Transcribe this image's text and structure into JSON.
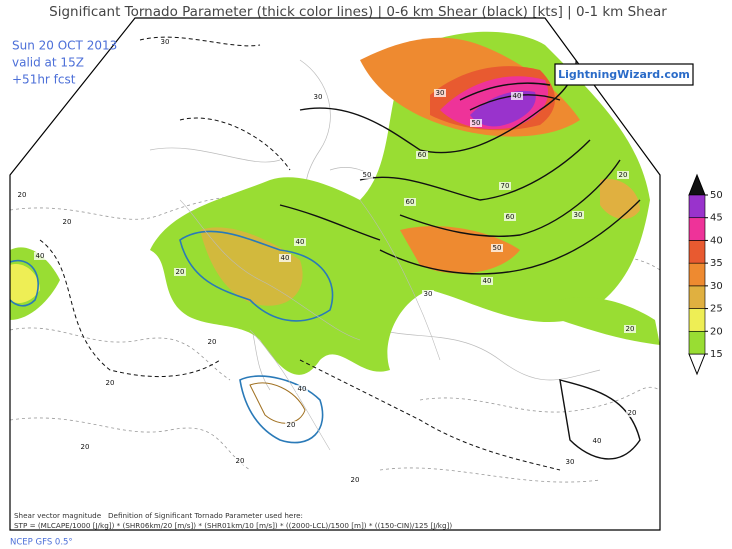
{
  "title": "Significant Tornado Parameter (thick color lines) | 0-6 km Shear (black) [kts] | 0-1 km Shear",
  "info": [
    "Sun 20 OCT 2013",
    "valid at 15Z",
    "+51hr fcst"
  ],
  "site": "LightningWizard.com",
  "footer": {
    "shear_note": "Shear vector magnitude",
    "definition": "Definition of Significant Tornado Parameter used here:",
    "formula": "STP = (MLCAPE/1000 [J/kg]) * (SHR06km/20 [m/s]) * (SHR01km/10 [m/s]) * ((2000-LCL)/1500 [m]) * ((150-CIN)/125 [J/kg])",
    "model": "NCEP GFS 0.5°"
  },
  "colorbar": {
    "ticks": [
      15,
      20,
      25,
      30,
      35,
      40,
      45,
      50
    ],
    "colors": [
      "#99dd33",
      "#eeee55",
      "#e0b040",
      "#ee8a30",
      "#e85a30",
      "#ee3399",
      "#9933cc"
    ]
  },
  "contour_labels": [
    30,
    30,
    30,
    40,
    50,
    60,
    50,
    60,
    70,
    60,
    50,
    40,
    30,
    40,
    20,
    20,
    20,
    40,
    40,
    40,
    20,
    20,
    20,
    30,
    40,
    20,
    30,
    20,
    20,
    20,
    20,
    20
  ]
}
